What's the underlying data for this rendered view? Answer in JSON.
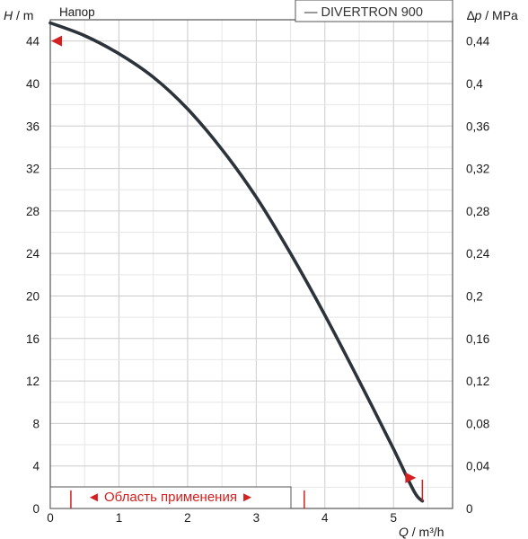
{
  "chart_data": {
    "type": "line",
    "title": "Напор",
    "legend": "— DIVERTRON 900",
    "y_label_left": "H / m",
    "y_label_right": "∆p / MPa",
    "x_label": "Q / m³/h",
    "xlim": [
      0,
      5.86
    ],
    "ylim_left": [
      0,
      46
    ],
    "ylim_right": [
      0,
      0.46
    ],
    "x_ticks": [
      "0",
      "1",
      "2",
      "3",
      "4",
      "5"
    ],
    "y_ticks_left": [
      "0",
      "4",
      "8",
      "12",
      "16",
      "20",
      "24",
      "28",
      "32",
      "36",
      "40",
      "44"
    ],
    "y_ticks_right": [
      "0",
      "0,04",
      "0,08",
      "0,12",
      "0,16",
      "0,2",
      "0,24",
      "0,28",
      "0,32",
      "0,36",
      "0,4",
      "0,44"
    ],
    "grid": true,
    "series": [
      {
        "name": "DIVERTRON 900",
        "color": "#2d333b",
        "points": [
          [
            0.0,
            45.7
          ],
          [
            0.5,
            44.5
          ],
          [
            1.0,
            42.8
          ],
          [
            1.5,
            40.6
          ],
          [
            2.0,
            37.6
          ],
          [
            2.5,
            33.8
          ],
          [
            3.0,
            29.3
          ],
          [
            3.5,
            24.0
          ],
          [
            4.0,
            18.2
          ],
          [
            4.5,
            12.0
          ],
          [
            5.0,
            5.6
          ],
          [
            5.3,
            1.6
          ],
          [
            5.42,
            0.7
          ]
        ]
      }
    ],
    "application_range": {
      "label": "◄ Область применения ►",
      "q_min": 0.3,
      "q_max": 3.7,
      "h_max": 44,
      "h_min": 2.8,
      "marker_color": "#d42020"
    }
  }
}
